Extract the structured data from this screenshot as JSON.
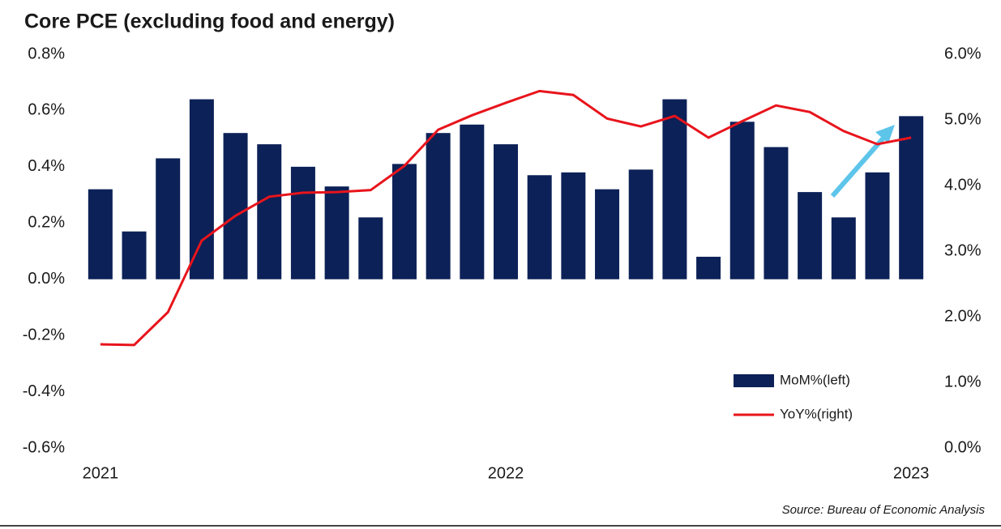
{
  "chart_data": {
    "type": "bar_line",
    "title": "Core PCE (excluding food and energy)",
    "source": "Source: Bureau of Economic Analysis",
    "categories": [
      "2021",
      null,
      null,
      null,
      null,
      null,
      null,
      null,
      null,
      null,
      null,
      null,
      "2022",
      null,
      null,
      null,
      null,
      null,
      null,
      null,
      null,
      null,
      null,
      null,
      "2023"
    ],
    "series": [
      {
        "name": "MoM%(left)",
        "type": "bar",
        "color": "#0c2157",
        "axis": "y",
        "values": [
          0.32,
          0.17,
          0.43,
          0.64,
          0.52,
          0.48,
          0.4,
          0.33,
          0.22,
          0.41,
          0.52,
          0.55,
          0.48,
          0.37,
          0.38,
          0.32,
          0.39,
          0.64,
          0.08,
          0.56,
          0.47,
          0.31,
          0.22,
          0.38,
          0.58
        ]
      },
      {
        "name": "YoY%(right)",
        "type": "line",
        "color": "#e8141c",
        "axis": "y2",
        "values": [
          1.58,
          1.57,
          2.07,
          3.16,
          3.54,
          3.83,
          3.89,
          3.9,
          3.93,
          4.3,
          4.85,
          5.07,
          5.26,
          5.44,
          5.38,
          5.02,
          4.9,
          5.06,
          4.73,
          4.98,
          5.22,
          5.12,
          4.83,
          4.63,
          4.73
        ]
      }
    ],
    "ylim": [
      -0.6,
      0.8
    ],
    "yticks": [
      {
        "value": -0.6,
        "label": "-0.6%"
      },
      {
        "value": -0.4,
        "label": "-0.4%"
      },
      {
        "value": -0.2,
        "label": "-0.2%"
      },
      {
        "value": 0,
        "label": "0.0%"
      },
      {
        "value": 0.2,
        "label": "0.2%"
      },
      {
        "value": 0.4,
        "label": "0.4%"
      },
      {
        "value": 0.6,
        "label": "0.6%"
      },
      {
        "value": 0.8,
        "label": "0.8%"
      }
    ],
    "y2lim": [
      0,
      6
    ],
    "y2ticks": [
      {
        "value": 0,
        "label": "0.0%"
      },
      {
        "value": 1,
        "label": "1.0%"
      },
      {
        "value": 2,
        "label": "2.0%"
      },
      {
        "value": 3,
        "label": "3.0%"
      },
      {
        "value": 4,
        "label": "4.0%"
      },
      {
        "value": 5,
        "label": "5.0%"
      },
      {
        "value": 6,
        "label": "6.0%"
      }
    ],
    "grid": false,
    "legend": "lower right"
  }
}
